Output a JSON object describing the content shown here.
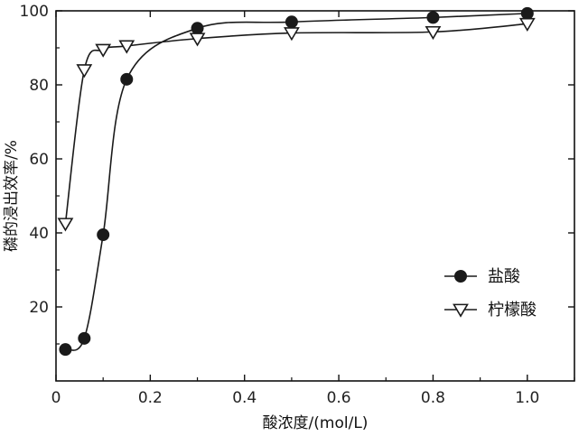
{
  "chart_data": {
    "type": "line",
    "xlabel": "酸浓度/(mol/L)",
    "ylabel": "磷的浸出效率/%",
    "xlim": [
      0,
      1.1
    ],
    "ylim": [
      0,
      100
    ],
    "x_ticks": [
      0,
      0.2,
      0.4,
      0.6,
      0.8,
      1.0
    ],
    "x_tick_labels": [
      "0",
      "0.2",
      "0.4",
      "0.6",
      "0.8",
      "1.0"
    ],
    "y_ticks": [
      20,
      40,
      60,
      80,
      100
    ],
    "y_tick_labels": [
      "20",
      "40",
      "60",
      "80",
      "100"
    ],
    "grid": false,
    "legend_position": "right",
    "series": [
      {
        "name": "盐酸",
        "marker": "filled-circle",
        "color": "#1a1a1a",
        "x": [
          0.02,
          0.06,
          0.1,
          0.15,
          0.3,
          0.5,
          0.8,
          1.0
        ],
        "y": [
          8.5,
          11.5,
          39.5,
          81.5,
          95.3,
          97.0,
          98.2,
          99.3
        ]
      },
      {
        "name": "柠檬酸",
        "marker": "open-triangle-down",
        "color": "#1a1a1a",
        "x": [
          0.02,
          0.06,
          0.1,
          0.15,
          0.3,
          0.5,
          0.8,
          1.0
        ],
        "y": [
          42.5,
          84.0,
          89.5,
          90.5,
          92.5,
          94.0,
          94.3,
          96.5
        ]
      }
    ]
  }
}
